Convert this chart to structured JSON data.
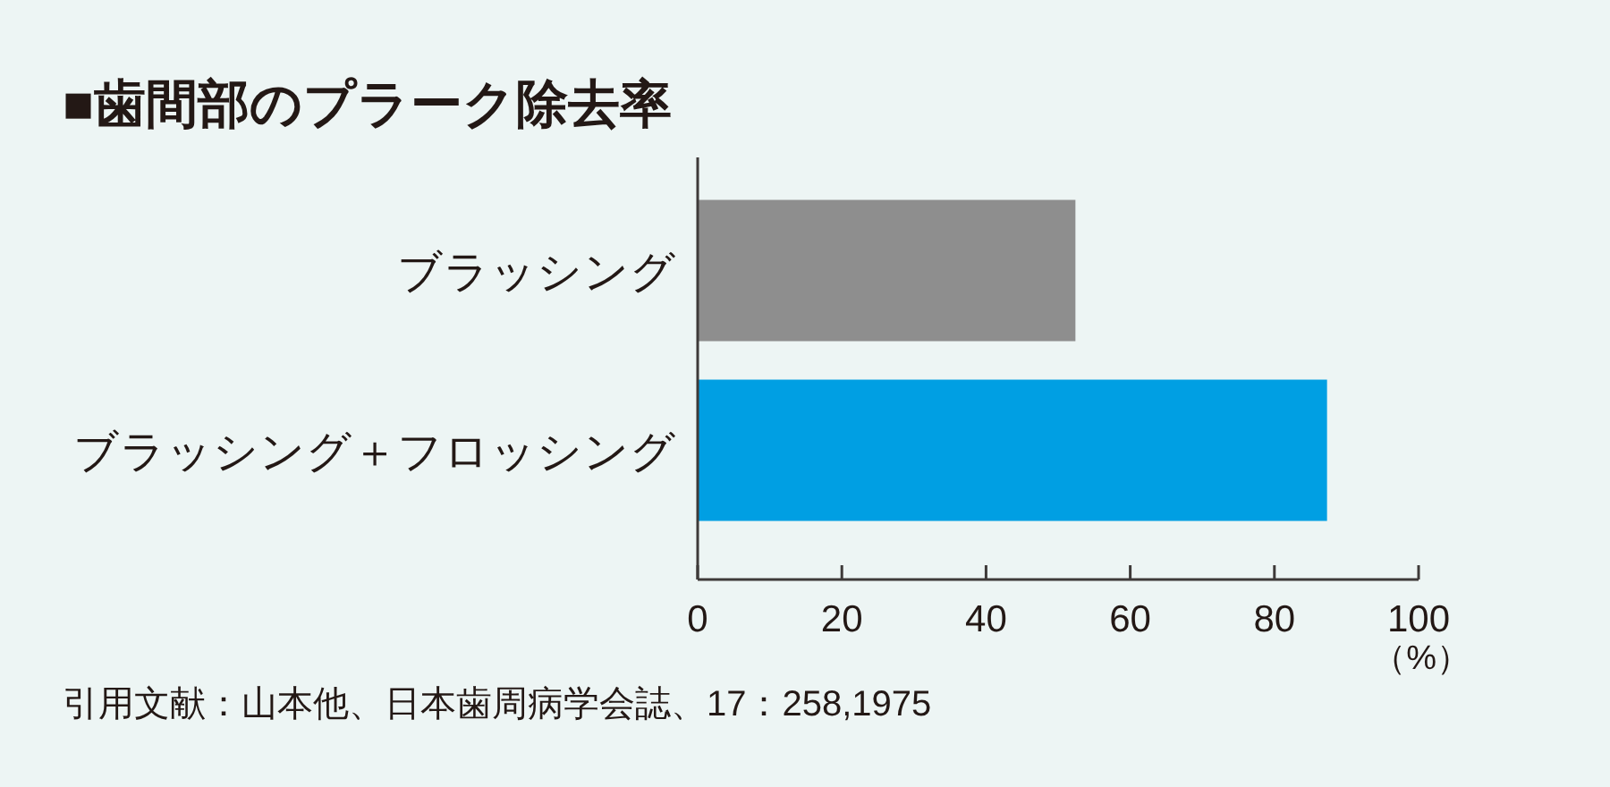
{
  "chart_data": {
    "type": "bar",
    "orientation": "horizontal",
    "title": "■歯間部のプラーク除去率",
    "categories": [
      "ブラッシング",
      "ブラッシング＋フロッシング"
    ],
    "values": [
      52.4,
      87.3
    ],
    "colors": [
      "#8e8e8e",
      "#009fe3"
    ],
    "xlim": [
      0,
      100
    ],
    "xticks": [
      0,
      20,
      40,
      60,
      80,
      100
    ],
    "xlabel": "（%）",
    "annotations": [
      "引用文献：山本他、日本歯周病学会誌、17：258,1975"
    ]
  }
}
